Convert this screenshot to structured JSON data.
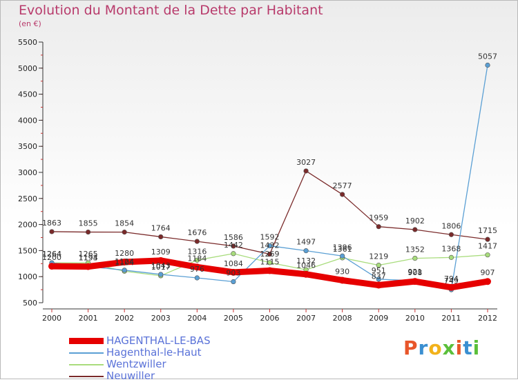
{
  "header": {
    "title": "Evolution du Montant de la Dette par Habitant",
    "unit": "(en €)"
  },
  "logo": {
    "text": "Proxiti",
    "colors": [
      "#e8562a",
      "#3a8fd1",
      "#f2b21b",
      "#5bbf3a",
      "#e8562a",
      "#3a8fd1",
      "#5bbf3a"
    ]
  },
  "chart_data": {
    "type": "line",
    "x": [
      2000,
      2001,
      2002,
      2003,
      2004,
      2005,
      2006,
      2007,
      2008,
      2009,
      2010,
      2011,
      2012
    ],
    "ylim": [
      500,
      5500
    ],
    "yticks": [
      500,
      1000,
      1500,
      2000,
      2500,
      3000,
      3500,
      4000,
      4500,
      5000,
      5500
    ],
    "grid": false,
    "legend": "bottom-left",
    "series": [
      {
        "name": "HAGENTHAL-LE-BAS",
        "color": "#e60000",
        "values": [
          1200,
          1193,
          1280,
          1309,
          1184,
          1084,
          1115,
          1046,
          930,
          837,
          908,
          794,
          907
        ]
      },
      {
        "name": "Hagenthal-le-Haut",
        "color": "#5a9fd4",
        "values": [
          1264,
          1194,
          1124,
          1043,
          976,
          903,
          1592,
          1497,
          1396,
          951,
          921,
          749,
          5057
        ]
      },
      {
        "name": "Wentzwiller",
        "color": "#a8dc7c",
        "values": [
          1264,
          1265,
          1104,
          1017,
          1316,
          1442,
          1269,
          1132,
          1361,
          1219,
          1352,
          1368,
          1417
        ]
      },
      {
        "name": "Neuwiller",
        "color": "#7a2a2a",
        "values": [
          1863,
          1855,
          1854,
          1764,
          1676,
          1586,
          1432,
          3027,
          2577,
          1959,
          1902,
          1806,
          1715
        ]
      }
    ]
  }
}
